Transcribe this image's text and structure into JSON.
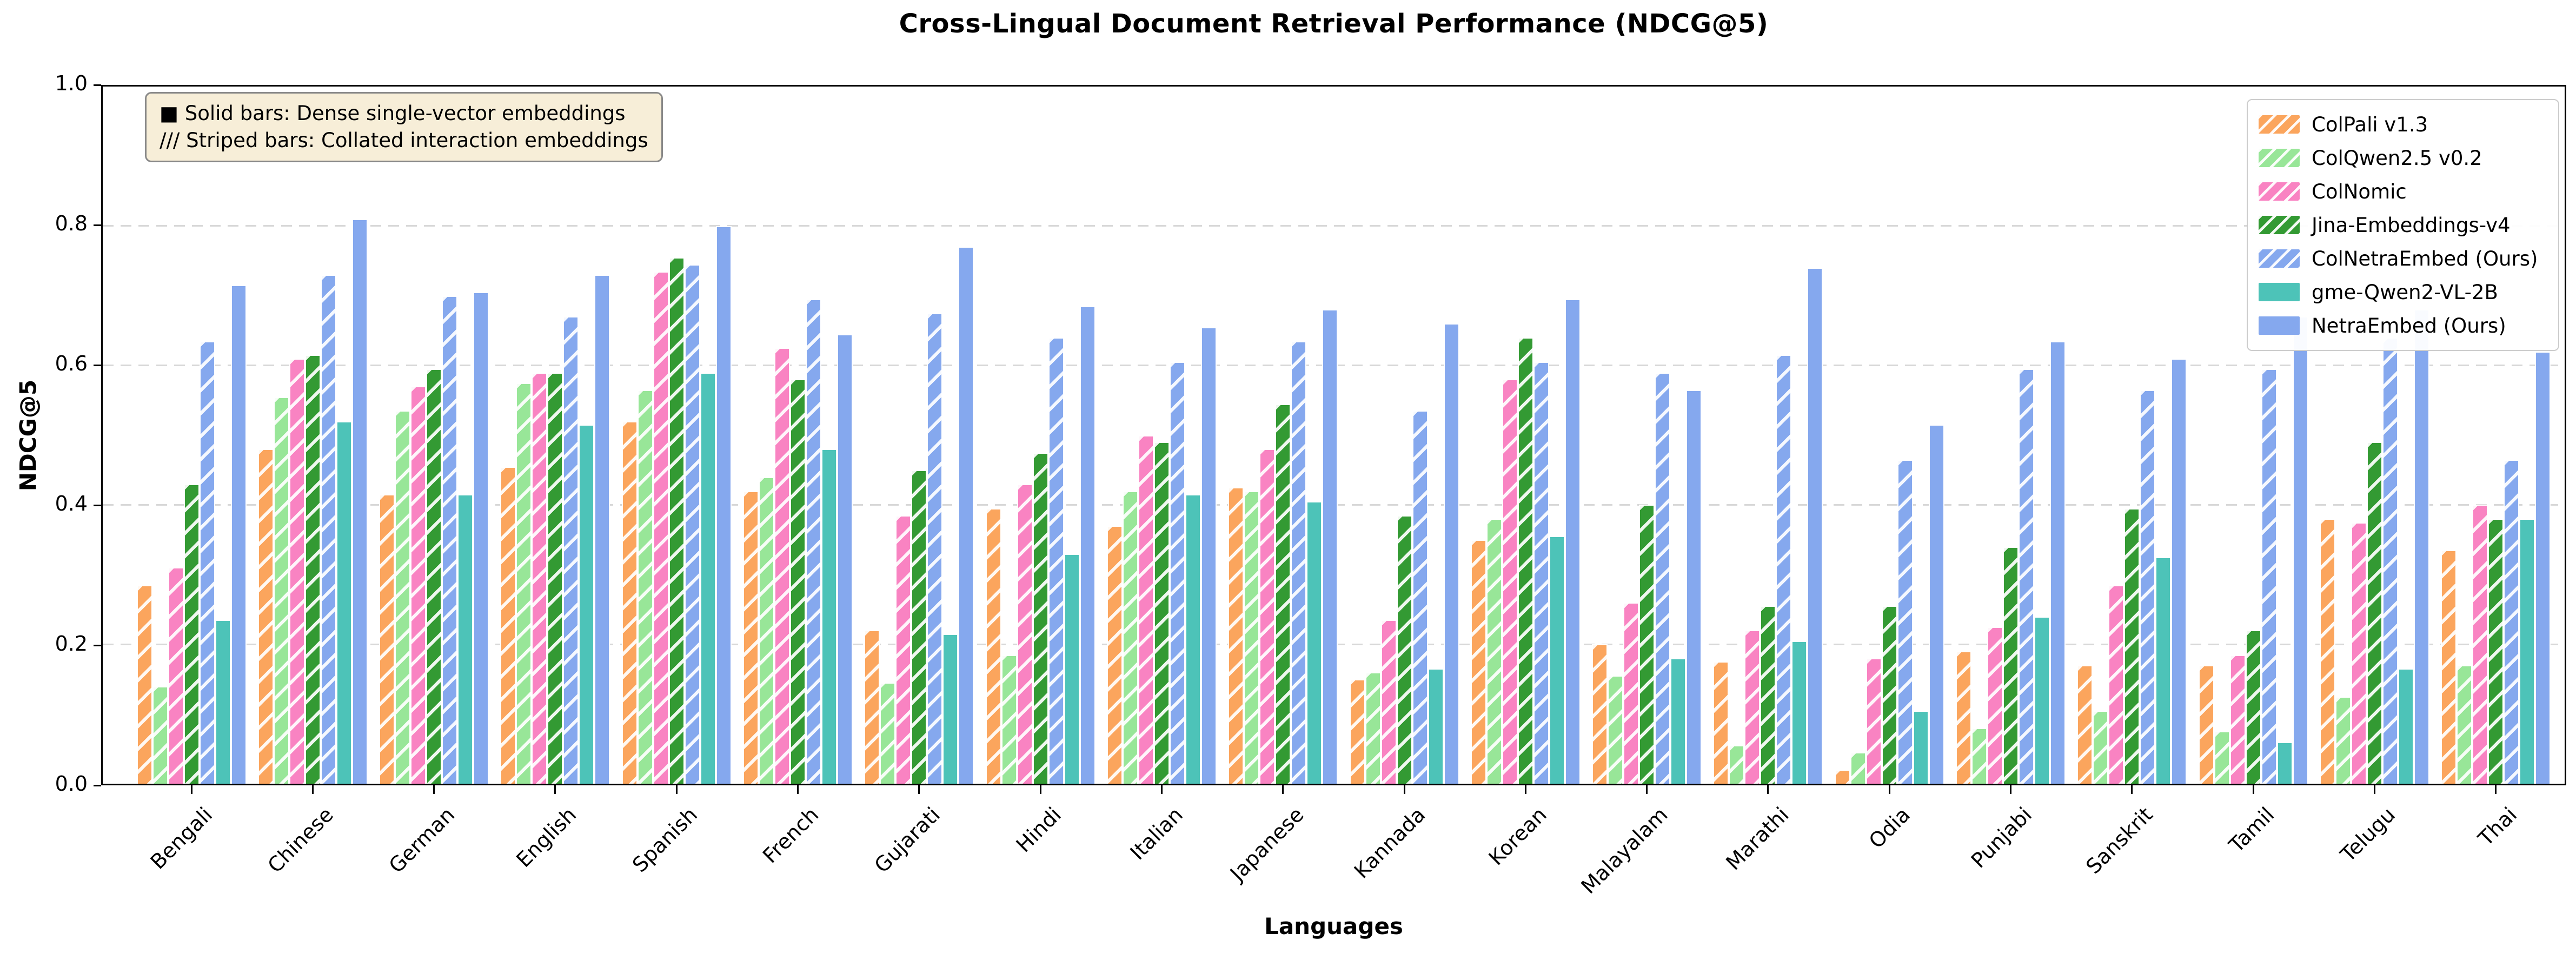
{
  "title": "Cross-Lingual Document Retrieval Performance (NDCG@5)",
  "note": {
    "solid": "■ Solid bars: Dense single-vector embeddings",
    "striped": "/// Striped bars: Collated interaction embeddings"
  },
  "axes": {
    "ylabel": "NDCG@5",
    "xlabel": "Languages",
    "yticks": [
      "0.0",
      "0.2",
      "0.4",
      "0.6",
      "0.8",
      "1.0"
    ]
  },
  "chart_data": {
    "type": "bar",
    "title": "Cross-Lingual Document Retrieval Performance (NDCG@5)",
    "xlabel": "Languages",
    "ylabel": "NDCG@5",
    "ylim": [
      0.0,
      1.0
    ],
    "ytick_step": 0.2,
    "grid": "horizontal dashed",
    "legend_position": "upper right",
    "categories": [
      "Bengali",
      "Chinese",
      "German",
      "English",
      "Spanish",
      "French",
      "Gujarati",
      "Hindi",
      "Italian",
      "Japanese",
      "Kannada",
      "Korean",
      "Malayalam",
      "Marathi",
      "Odia",
      "Punjabi",
      "Sanskrit",
      "Tamil",
      "Telugu",
      "Thai"
    ],
    "series": [
      {
        "name": "ColPali v1.3",
        "color": "#FBA55D",
        "hatched": true,
        "values": [
          0.285,
          0.48,
          0.415,
          0.455,
          0.52,
          0.42,
          0.22,
          0.395,
          0.37,
          0.425,
          0.15,
          0.35,
          0.2,
          0.175,
          0.02,
          0.19,
          0.17,
          0.17,
          0.38,
          0.335
        ]
      },
      {
        "name": "ColQwen2.5 v0.2",
        "color": "#98E698",
        "hatched": true,
        "values": [
          0.14,
          0.555,
          0.535,
          0.575,
          0.565,
          0.44,
          0.145,
          0.185,
          0.42,
          0.42,
          0.16,
          0.38,
          0.155,
          0.055,
          0.045,
          0.08,
          0.105,
          0.075,
          0.125,
          0.17
        ]
      },
      {
        "name": "ColNomic",
        "color": "#F983C2",
        "hatched": true,
        "values": [
          0.31,
          0.61,
          0.57,
          0.59,
          0.735,
          0.625,
          0.385,
          0.43,
          0.5,
          0.48,
          0.235,
          0.58,
          0.26,
          0.22,
          0.18,
          0.225,
          0.285,
          0.185,
          0.375,
          0.4
        ]
      },
      {
        "name": "Jina-Embeddings-v4",
        "color": "#339A33",
        "hatched": true,
        "values": [
          0.43,
          0.615,
          0.595,
          0.59,
          0.755,
          0.58,
          0.45,
          0.475,
          0.49,
          0.545,
          0.385,
          0.64,
          0.4,
          0.255,
          0.255,
          0.34,
          0.395,
          0.22,
          0.49,
          0.38
        ]
      },
      {
        "name": "ColNetraEmbed (Ours)",
        "color": "#85A8EE",
        "hatched": true,
        "values": [
          0.635,
          0.73,
          0.7,
          0.67,
          0.745,
          0.695,
          0.675,
          0.64,
          0.605,
          0.635,
          0.535,
          0.605,
          0.59,
          0.615,
          0.465,
          0.595,
          0.565,
          0.595,
          0.64,
          0.465
        ]
      },
      {
        "name": "gme-Qwen2-VL-2B",
        "color": "#4DC3B8",
        "hatched": false,
        "values": [
          0.235,
          0.52,
          0.415,
          0.515,
          0.59,
          0.48,
          0.215,
          0.33,
          0.415,
          0.405,
          0.165,
          0.355,
          0.18,
          0.205,
          0.105,
          0.24,
          0.325,
          0.06,
          0.165,
          0.38
        ]
      },
      {
        "name": "NetraEmbed (Ours)",
        "color": "#85A8EE",
        "hatched": false,
        "values": [
          0.715,
          0.81,
          0.705,
          0.73,
          0.8,
          0.645,
          0.77,
          0.685,
          0.655,
          0.68,
          0.66,
          0.695,
          0.565,
          0.74,
          0.515,
          0.635,
          0.61,
          0.67,
          0.68,
          0.62
        ]
      }
    ]
  }
}
